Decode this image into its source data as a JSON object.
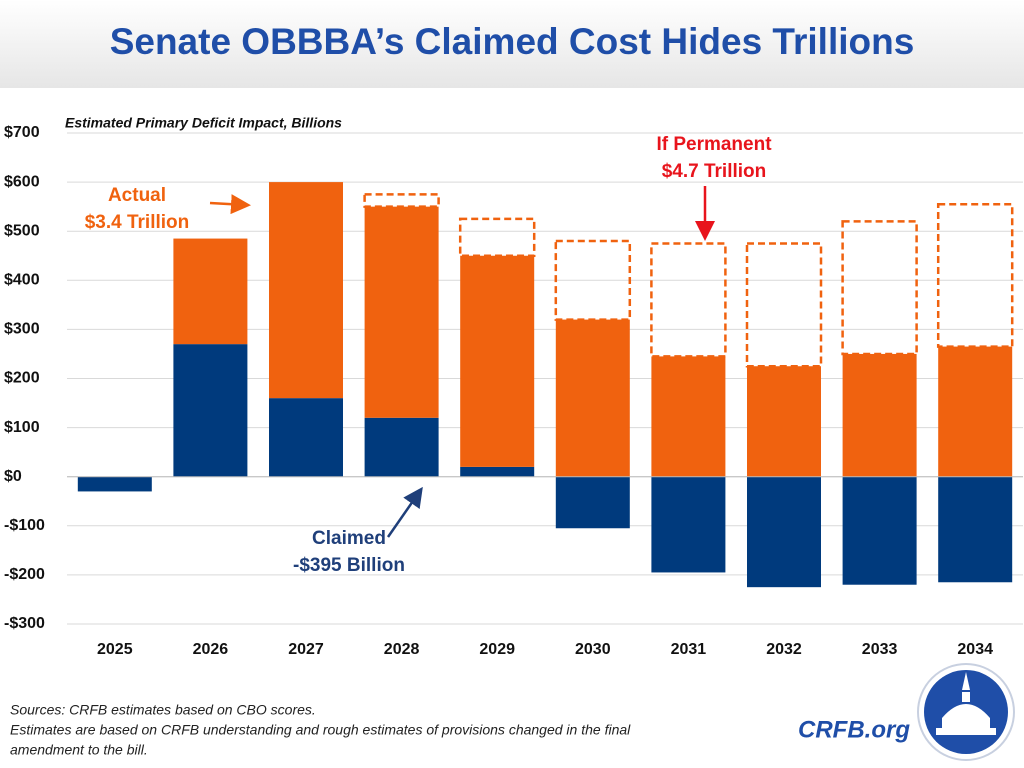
{
  "chart_data": {
    "type": "bar",
    "stacked": true,
    "title": "Senate OBBBA’s Claimed Cost Hides Trillions",
    "subtitle": "Estimated Primary Deficit Impact, Billions",
    "categories": [
      "2025",
      "2026",
      "2027",
      "2028",
      "2029",
      "2030",
      "2031",
      "2032",
      "2033",
      "2034"
    ],
    "series": [
      {
        "color": "#003a7d",
        "values": [
          -30,
          270,
          160,
          120,
          20,
          -105,
          -195,
          -225,
          -220,
          -215
        ]
      },
      {
        "color": "#f0620f",
        "values": [
          null,
          215,
          440,
          430,
          430,
          320,
          245,
          225,
          250,
          265
        ]
      },
      {
        "color": "#f0620f",
        "style": "dashed",
        "values": [
          null,
          null,
          0,
          25,
          75,
          160,
          230,
          250,
          270,
          290
        ]
      }
    ],
    "ylim": [
      -300,
      700
    ],
    "yticks": [
      {
        "value": -300,
        "label": "-$300"
      },
      {
        "value": -200,
        "label": "-$200"
      },
      {
        "value": -100,
        "label": "-$100"
      },
      {
        "value": 0,
        "label": "$0"
      },
      {
        "value": 100,
        "label": "$100"
      },
      {
        "value": 200,
        "label": "$200"
      },
      {
        "value": 300,
        "label": "$300"
      },
      {
        "value": 400,
        "label": "$400"
      },
      {
        "value": 500,
        "label": "$500"
      },
      {
        "value": 600,
        "label": "$600"
      },
      {
        "value": 700,
        "label": "$700"
      }
    ],
    "grid": true,
    "annotations": [
      {
        "lines": [
          "Actual",
          "$3.4 Trillion"
        ],
        "color": "#f0620f"
      },
      {
        "lines": [
          "If Permanent",
          "$4.7 Trillion"
        ],
        "color": "#e8141c"
      },
      {
        "lines": [
          "Claimed",
          "-$395 Billion"
        ],
        "color": "#1f3f7a"
      }
    ]
  },
  "footer": {
    "notes": [
      "Sources: CRFB estimates based on CBO scores.",
      "Estimates are based on CRFB understanding and rough estimates of provisions changed in the final",
      "amendment to the bill."
    ],
    "brand": "CRFB.org"
  }
}
